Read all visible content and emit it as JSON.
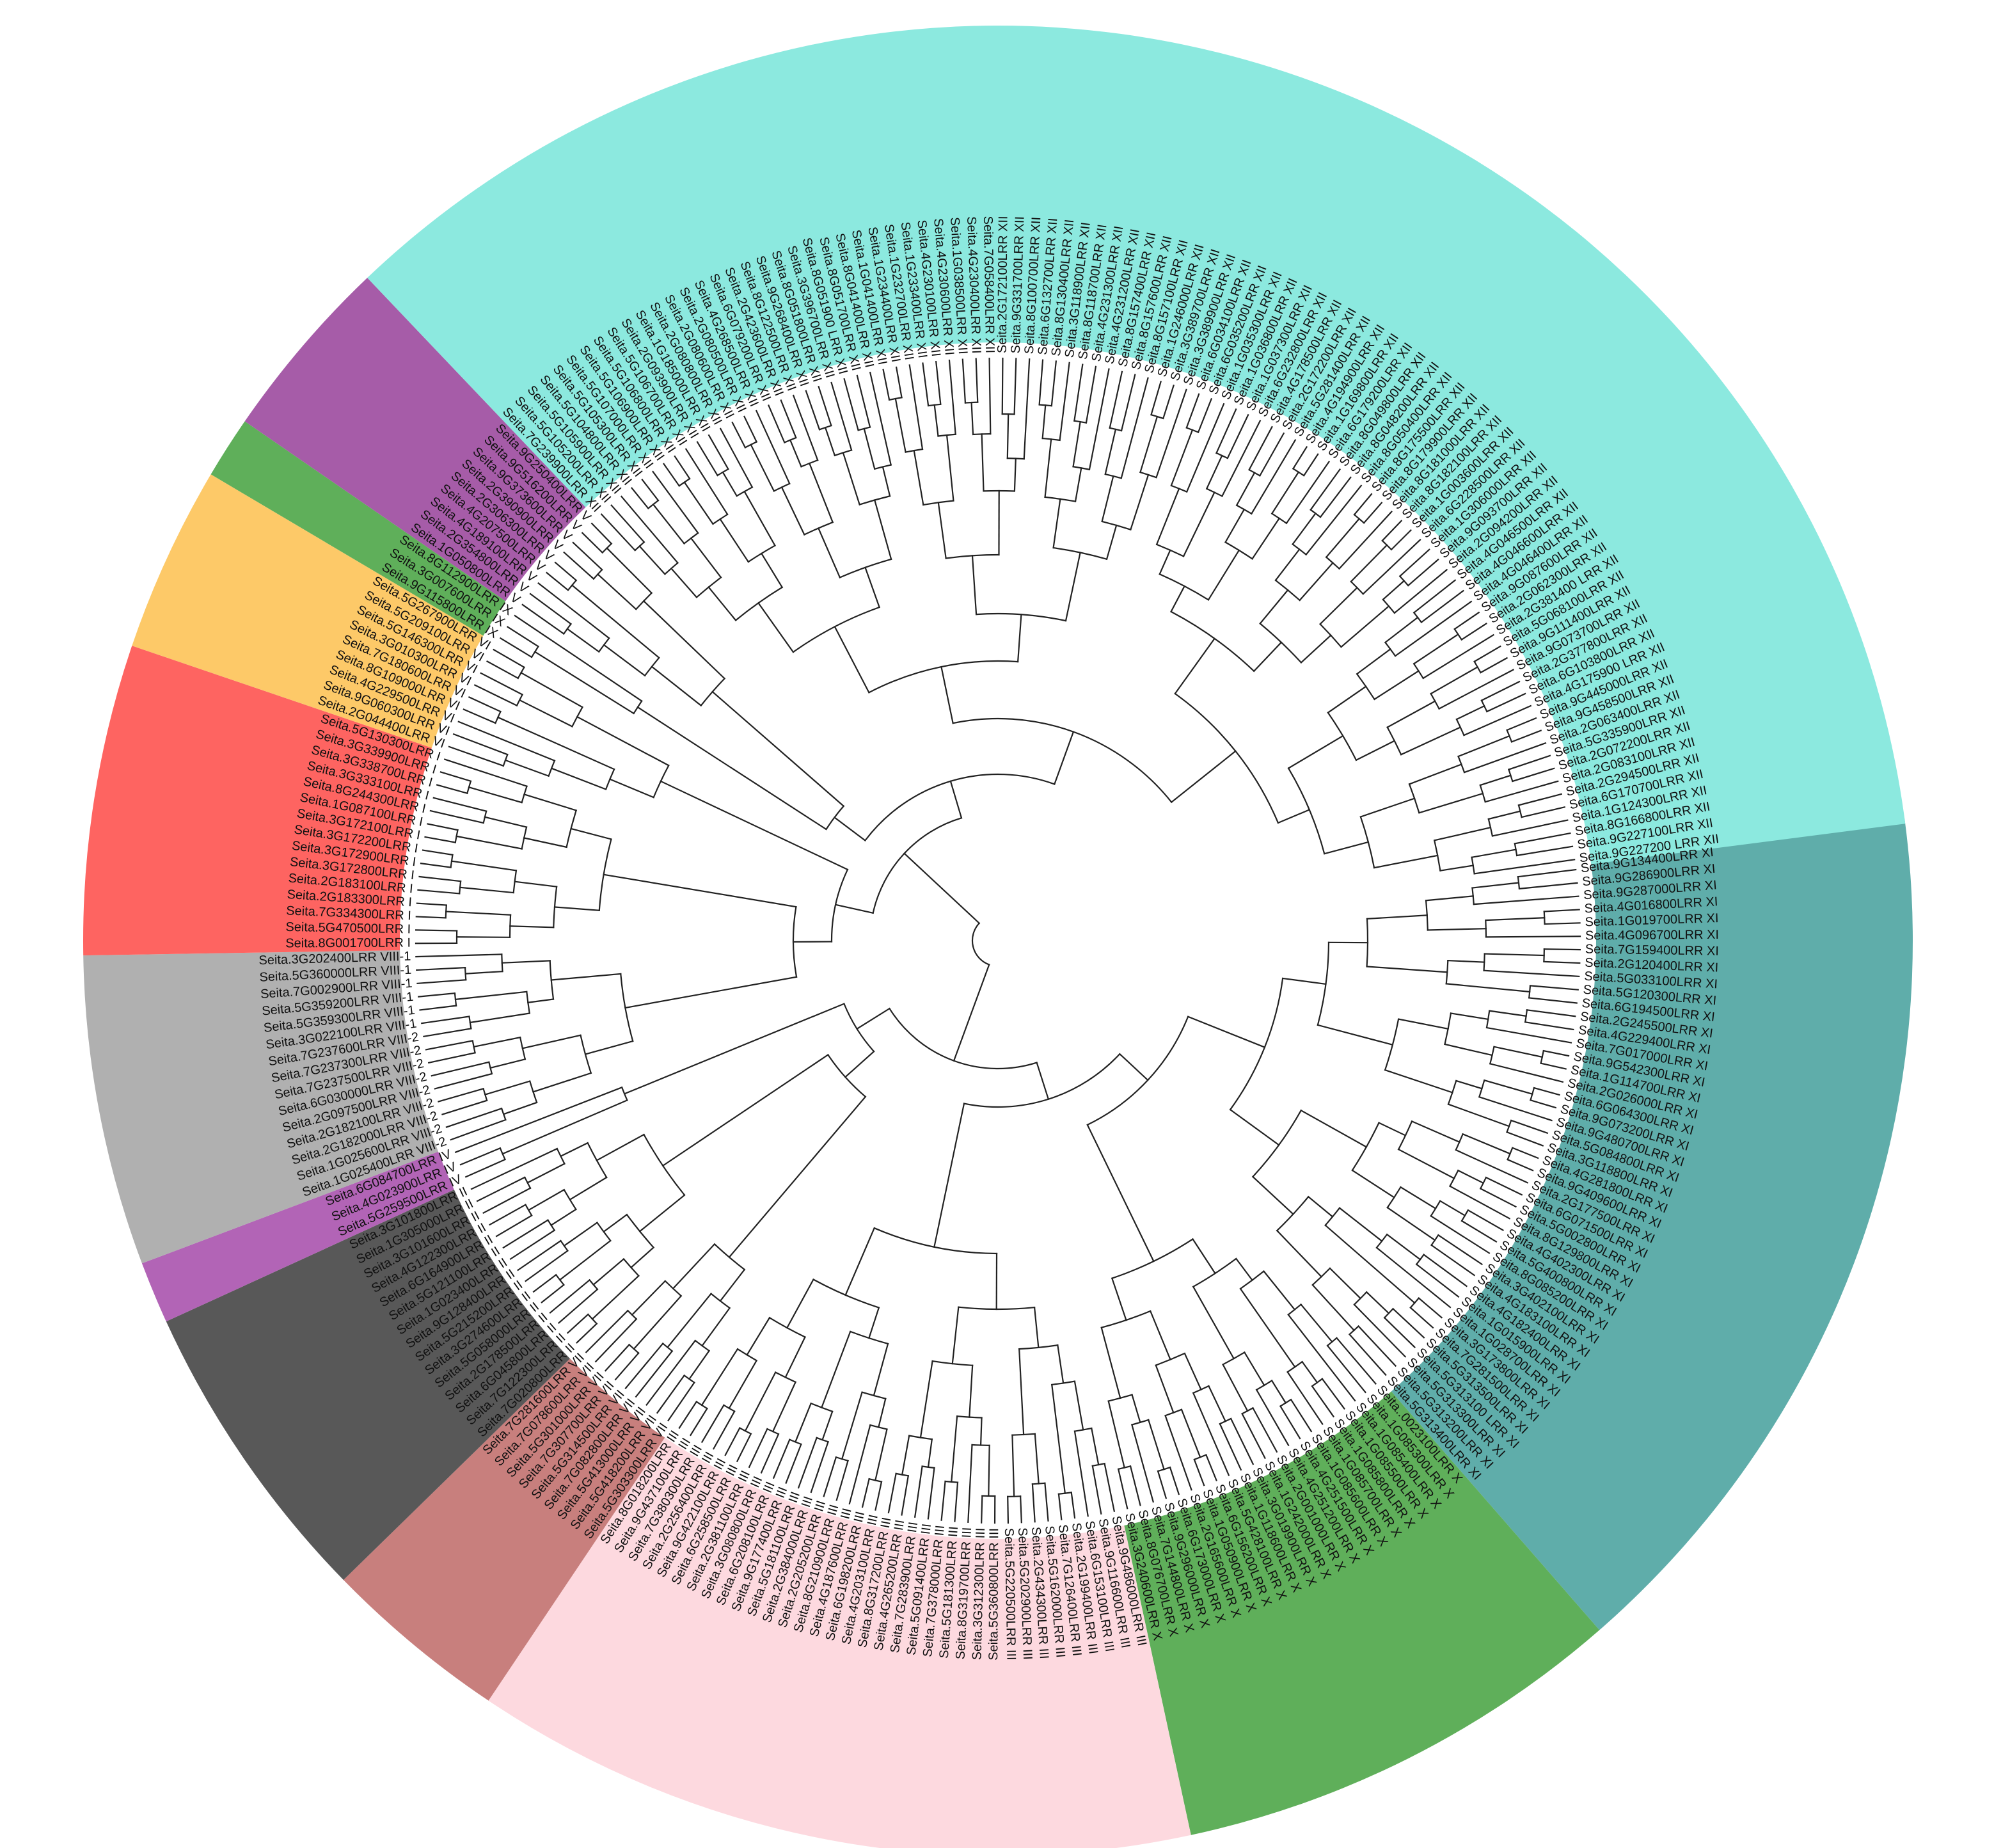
{
  "tree": {
    "subfamilies": [
      {
        "name": "LRR XI",
        "color": "#5fadaa",
        "leaves": [
          "Seita.9G134400LRR XI",
          "Seita.9G286900LRR XI",
          "Seita.9G287000LRR XI",
          "Seita.4G016800LRR XI",
          "Seita.1G019700LRR XI",
          "Seita.4G096700LRR XI",
          "Seita.7G159400LRR XI",
          "Seita.2G120400LRR XI",
          "Seita.5G033100LRR XI",
          "Seita.5G120300LRR XI",
          "Seita.6G194500LRR XI",
          "Seita.2G245500LRR XI",
          "Seita.4G229400LRR XI",
          "Seita.7G017000LRR XI",
          "Seita.9G542300LRR XI",
          "Seita.1G114700LRR XI",
          "Seita.2G026000LRR XI",
          "Seita.6G064300LRR XI",
          "Seita.9G073200LRR XI",
          "Seita.9G480700LRR XI",
          "Seita.5G084800LRR XI",
          "Seita.3G118800LRR XI",
          "Seita.4G281800LRR XI",
          "Seita.9G409600LRR XI",
          "Seita.2G177500LRR XI",
          "Seita.6G071500LRR XI",
          "Seita.5G002800LRR XI",
          "Seita.8G129800LRR XI",
          "Seita.4G402300LRR XI",
          "Seita.5G400800LRR XI",
          "Seita.8G085200LRR XI",
          "Seita.3G402100LRR XI",
          "Seita.4G183100LRR XI",
          "Seita.4G182400LRR XI",
          "Seita.1G015900LRR XI",
          "Seita.1G028700LRR XI",
          "Seita.3G173800LRR XI",
          "Seita.7G281500LRR XI",
          "Seita.5G313500LRR XI",
          "Seita.5G313100 LRR XI",
          "Seita.5G313300LRR XI",
          "Seita.5G313200LRR XI",
          "Seita.5G313400LRR XI"
        ]
      },
      {
        "name": "LRR X",
        "color": "#5faf5a",
        "leaves": [
          "Seita..0023100LRR X",
          "Seita.1G085300LRR X",
          "Seita.1G085400LRR X",
          "Seita.1G085500LRR X",
          "Seita.1G085800LRR X",
          "Seita.1G085700LRR X",
          "Seita.1G085600LRR X",
          "Seita.4G251500LRR X",
          "Seita.4G251200LRR X",
          "Seita.2G001000LRR X",
          "Seita.1G242000LRR X",
          "Seita.3G019900LRR X",
          "Seita.1G118600LRR X",
          "Seita.5G428100LRR X",
          "Seita.6G156200LRR X",
          "Seita.1G050900LRR X",
          "Seita.2G165600LRR X",
          "Seita.6G173000LRR X",
          "Seita.9G296000LRR X",
          "Seita.7G144800LRR X",
          "Seita.8G076700LRR X",
          "Seita.3G240600LRR X"
        ]
      },
      {
        "name": "LRR III",
        "color": "#fdd9df",
        "leaves": [
          "Seita.9G486000LRR III",
          "Seita.9G116600LRR III",
          "Seita.6G153100LRR III",
          "Seita.2G199400LRR III",
          "Seita.7G126400LRR III",
          "Seita.5G162000LRR III",
          "Seita.2G434300LRR III",
          "Seita.5G202900LRR III",
          "Seita.5G220500LRR III",
          "Seita.5G360800LRR III",
          "Seita.3G312300LRR III",
          "Seita.8G319700LRR III",
          "Seita.5G181300LRR III",
          "Seita.7G378000LRR III",
          "Seita.5G091400LRR III",
          "Seita.7G283900LRR III",
          "Seita.4G265200LRR III",
          "Seita.8G317200LRR III",
          "Seita.4G203100LRR III",
          "Seita.6G198200LRR III",
          "Seita.4G187600LRR III",
          "Seita.8G210900LRR III",
          "Seita.2G205200LRR III",
          "Seita.2G384000LRR III",
          "Seita.5G181100LRR III",
          "Seita.9G177400LRR III",
          "Seita.6G208100LRR III",
          "Seita.3G080800LRR III",
          "Seita.2G381100LRR III",
          "Seita.6G258500LRR III",
          "Seita.9G422100LRR III",
          "Seita.2G256400LRR III",
          "Seita.7G380300LRR III",
          "Seita.9G437100LRR III",
          "Seita.8G018200LRR III"
        ]
      },
      {
        "name": "LRR VII",
        "color": "#c87f7d",
        "leaves": [
          "Seita.5G303300LRR VII",
          "Seita.5G418200LRR VII",
          "Seita.5G413000LRR VII",
          "Seita.7G082800LRR VII",
          "Seita.5G314500LRR VII",
          "Seita.7G307700LRR VII",
          "Seita.5G301000LRR VII",
          "Seita.7G078600LRR VII",
          "Seita.7G281600LRR VII"
        ]
      },
      {
        "name": "LRR II",
        "color": "#585858",
        "leaves": [
          "Seita.7G020800LRR II",
          "Seita.7G122300LRR II",
          "Seita.6G045800LRR II",
          "Seita.2G178500LRR II",
          "Seita.5G058000LRR II",
          "Seita.3G274600LRR II",
          "Seita.5G215200LRR II",
          "Seita.9G128400LRR II",
          "Seita.1G023400LRR II",
          "Seita.5G121100LRR II",
          "Seita.6G164900LRR II",
          "Seita.4G122300LRR II",
          "Seita.3G101600LRR II",
          "Seita.1G305000LRR II",
          "Seita.3G101800LRR II"
        ]
      },
      {
        "name": "LRR IV",
        "color": "#b264b6",
        "leaves": [
          "Seita.5G259500LRR IV",
          "Seita.4G023900LRR IV",
          "Seita.6G084700LRR IV"
        ]
      },
      {
        "name": "LRR VIII",
        "color": "#b0b0b0",
        "leaves": [
          "Seita.1G025400LRR VIII-2",
          "Seita.1G025600LRR VIII-2",
          "Seita.2G182000LRR VIII-2",
          "Seita.2G182100LRR VIII-2",
          "Seita.2G097500LRR VIII-2",
          "Seita.6G030000LRR VIII-2",
          "Seita.7G237500LRR VIII-2",
          "Seita.7G237300LRR VIII-2",
          "Seita.7G237600LRR VIII-2",
          "Seita.3G022100LRR VIII-1",
          "Seita.5G359300LRR VIII-1",
          "Seita.5G359200LRR VIII-1",
          "Seita.7G002900LRR VIII-1",
          "Seita.5G360000LRR VIII-1",
          "Seita.3G202400LRR VIII-1"
        ]
      },
      {
        "name": "LRR I",
        "color": "#fe6461",
        "leaves": [
          "Seita.8G001700LRR I",
          "Seita.5G470500LRR I",
          "Seita.7G334300LRR I",
          "Seita.2G183300LRR I",
          "Seita.2G183100LRR I",
          "Seita.3G172800LRR I",
          "Seita.3G172900LRR I",
          "Seita.3G172200LRR I",
          "Seita.3G172100LRR I",
          "Seita.1G087100LRR I",
          "Seita.8G244300LRR I",
          "Seita.3G333100LRR I",
          "Seita.3G338700LRR I",
          "Seita.3G339900LRR I",
          "Seita.5G130300LRR I"
        ]
      },
      {
        "name": "LRR VI",
        "color": "#fdc968",
        "leaves": [
          "Seita.2G044400LRR VI",
          "Seita.9G060300LRR VI",
          "Seita.4G229500LRR VI",
          "Seita.8G109000LRR VI",
          "Seita.7G180600LRR VI",
          "Seita.3G010300LRR VI",
          "Seita.5G146300LRR VI",
          "Seita.5G209100LRR VI",
          "Seita.5G267900LRR VI"
        ]
      },
      {
        "name": "LRR IX",
        "color": "#5faf5a",
        "leaves": [
          "Seita.9G115800LRR IX",
          "Seita.3G007600LRR IX",
          "Seita.8G112900LRR IX"
        ]
      },
      {
        "name": "LRR V",
        "color": "#a65ca8",
        "leaves": [
          "Seita.1G050800LRR V",
          "Seita.2G354800LRR V",
          "Seita.4G189100LRR V",
          "Seita.4G207500LRR V",
          "Seita.2G306300LRR V",
          "Seita.2G390900LRR V",
          "Seita.9G373600LRR V",
          "Seita.9G516200LRR V",
          "Seita.9G250400LRR V"
        ]
      },
      {
        "name": "LRR XII",
        "color": "#8ce9df",
        "leaves": [
          "Seita.7G239900LRR XII",
          "Seita.5G105200LRR XII",
          "Seita.5G105900LRR XII",
          "Seita.5G104800LRR XII",
          "Seita.5G105300LRR XII",
          "Seita.5G107000LRR XII",
          "Seita.5G106900LRR XII",
          "Seita.5G106800LRR XII",
          "Seita.5G106700LRR XII",
          "Seita.2G093900LRR XII",
          "Seita.1G185000LRR XII",
          "Seita.2G080800LRR XII",
          "Seita.2G080600LRR XII",
          "Seita.2G080500LRR XII",
          "Seita.4G268500LRR XII",
          "Seita.6G079200LRR XII",
          "Seita.2G423600LRR XII",
          "Seita.8G122500LRR XII",
          "Seita.9G268400LRR XII",
          "Seita.8G051800LRR XII",
          "Seita.3G396700LRR XII",
          "Seita.8G051900 LRR XII",
          "Seita.8G051700LRR XII",
          "Seita.8G041400LRR XII",
          "Seita.1G041400LRR XII",
          "Seita.1G234400LRR XII",
          "Seita.1G232700LRR XII",
          "Seita.1G233400LRR XII",
          "Seita.4G230100LRR XII",
          "Seita.4G230600LRR XII",
          "Seita.1G038500LRR XII",
          "Seita.4G230400LRR XII",
          "Seita.7G058400LRR XII",
          "Seita.2G172100LRR XII",
          "Seita.9G331700LRR XII",
          "Seita.8G100700LRR XII",
          "Seita.6G132700LRR XII",
          "Seita.8G130400LRR XII",
          "Seita.3G118900LRR XII",
          "Seita.8G118700LRR XII",
          "Seita.4G231300LRR XII",
          "Seita.4G231200LRR XII",
          "Seita.8G157400LRR XII",
          "Seita.8G157600LRR XII",
          "Seita.8G157100LRR XII",
          "Seita.1G246000LRR XII",
          "Seita.3G389700LRR XII",
          "Seita.3G389900LRR XII",
          "Seita.6G034100LRR XII",
          "Seita.6G035200LRR XII",
          "Seita.1G035300LRR XII",
          "Seita.1G036800LRR XII",
          "Seita.1G037300LRR XII",
          "Seita.6G232800LRR XII",
          "Seita.4G178500LRR XII",
          "Seita.2G172200LRR XII",
          "Seita.5G281400LRR XII",
          "Seita.4G194900LRR XII",
          "Seita.1G169800LRR XII",
          "Seita.6G179200LRR XII",
          "Seita.8G049800LRR XII",
          "Seita.8G048200LRR XII",
          "Seita.8G050400LRR XII",
          "Seita.8G175500LRR XII",
          "Seita.8G179900LRR XII",
          "Seita.8G181000LRR XII",
          "Seita.8G182100LRR XII",
          "Seita.1G003600LRR XII",
          "Seita.6G228500LRR XII",
          "Seita.1G306000LRR XII",
          "Seita.9G093700LRR XII",
          "Seita.2G094200LRR XII",
          "Seita.4G046500LRR XII",
          "Seita.4G046600LRR XII",
          "Seita.4G046400LRR XII",
          "Seita.9G087600LRR XII",
          "Seita.2G062300LRR XII",
          "Seita.2G381400 LRR XII",
          "Seita.5G068100LRR XII",
          "Seita.9G111400LRR XII",
          "Seita.9G073700LRR XII",
          "Seita.2G377800LRR XII",
          "Seita.6G103800LRR XII",
          "Seita.4G175900 LRR XII",
          "Seita.9G445000LRR XII",
          "Seita.9G458500LRR XII",
          "Seita.2G063400LRR XII",
          "Seita.5G335900LRR XII",
          "Seita.2G072200LRR XII",
          "Seita.2G083100LRR XII",
          "Seita.2G294500LRR XII",
          "Seita.6G170700LRR XII",
          "Seita.1G124300LRR XII",
          "Seita.8G166800LRR XII",
          "Seita.9G227100LRR XII",
          "Seita.9G227200 LRR XII"
        ]
      }
    ]
  }
}
